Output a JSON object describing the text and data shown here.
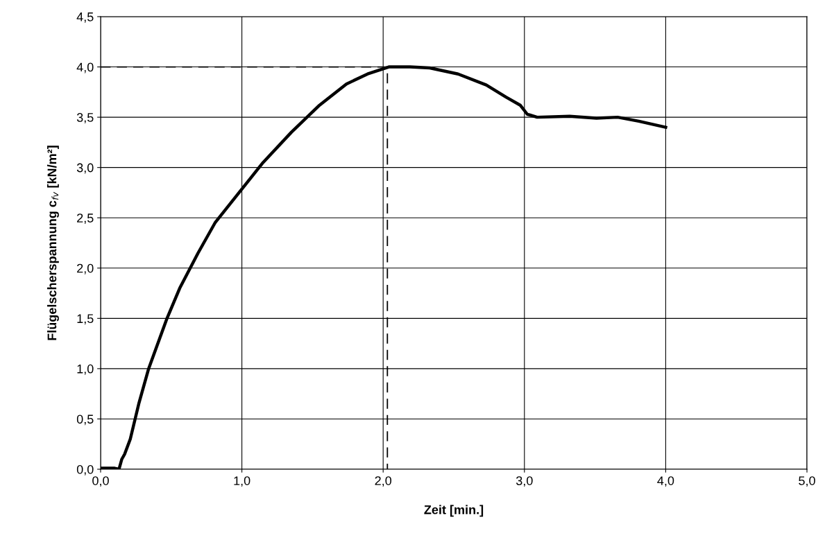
{
  "chart_data": {
    "type": "line",
    "xlabel": "Zeit [min.]",
    "ylabel": "Flügelscherspannung c$_{fv}$ [kN/m²]",
    "xlim": [
      0,
      5
    ],
    "ylim": [
      0,
      4.5
    ],
    "xticks": [
      {
        "value": 0,
        "label": "0,0"
      },
      {
        "value": 1,
        "label": "1,0"
      },
      {
        "value": 2,
        "label": "2,0"
      },
      {
        "value": 3,
        "label": "3,0"
      },
      {
        "value": 4,
        "label": "4,0"
      },
      {
        "value": 5,
        "label": "5,0"
      }
    ],
    "yticks": [
      {
        "value": 0,
        "label": "0,0"
      },
      {
        "value": 0.5,
        "label": "0,5"
      },
      {
        "value": 1,
        "label": "1,0"
      },
      {
        "value": 1.5,
        "label": "1,5"
      },
      {
        "value": 2,
        "label": "2,0"
      },
      {
        "value": 2.5,
        "label": "2,5"
      },
      {
        "value": 3,
        "label": "3,0"
      },
      {
        "value": 3.5,
        "label": "3,5"
      },
      {
        "value": 4,
        "label": "4,0"
      },
      {
        "value": 4.5,
        "label": "4,5"
      }
    ],
    "grid": true,
    "legend": false,
    "marker": "none",
    "series": [
      {
        "color": "#000000",
        "line_style": "solid",
        "x": [
          0,
          0.05,
          0.1,
          0.13,
          0.15,
          0.17,
          0.21,
          0.27,
          0.34,
          0.47,
          0.56,
          0.69,
          0.81,
          0.98,
          1.15,
          1.35,
          1.55,
          1.74,
          1.89,
          2.04,
          2.19,
          2.33,
          2.53,
          2.73,
          2.87,
          2.97,
          3.02,
          3.09,
          3.32,
          3.51,
          3.66,
          3.81,
          4.0
        ],
        "values": [
          0.01,
          0.01,
          0.01,
          0.0,
          0.1,
          0.15,
          0.3,
          0.65,
          1.0,
          1.5,
          1.8,
          2.15,
          2.45,
          2.75,
          3.05,
          3.35,
          3.62,
          3.83,
          3.93,
          4.0,
          4.0,
          3.99,
          3.93,
          3.82,
          3.7,
          3.62,
          3.53,
          3.5,
          3.51,
          3.49,
          3.5,
          3.46,
          3.4
        ]
      },
      {
        "color": "#000000",
        "line_style": "dashed",
        "x": [
          0,
          2.03,
          2.03
        ],
        "values": [
          4.0,
          4.0,
          0
        ]
      }
    ]
  }
}
